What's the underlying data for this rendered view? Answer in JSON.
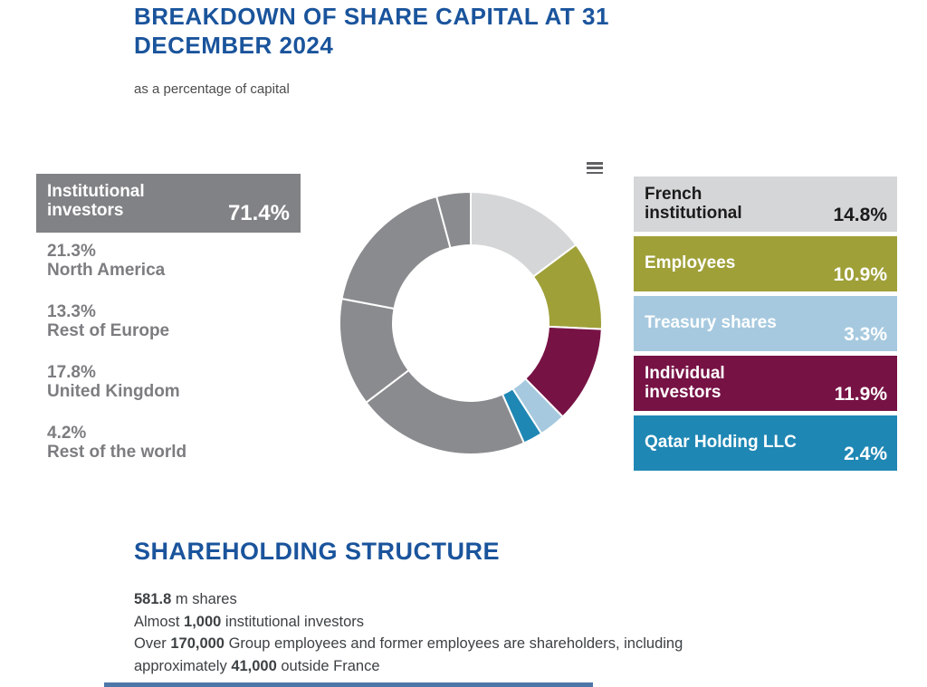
{
  "header": {
    "title": "BREAKDOWN OF SHARE CAPITAL AT 31 DECEMBER 2024",
    "subtitle": "as a percentage of capital"
  },
  "colors": {
    "heading_blue": "#1a549c",
    "institutional_gray": "#808285",
    "donut_gray": "#8a8b8e",
    "french_institutional": "#d5d6d7",
    "employees": "#9fa038",
    "treasury_shares": "#a6c9df",
    "individual_investors": "#771245",
    "qatar_holding": "#1f87b4",
    "body_text": "#3d4144",
    "bottom_bar_blue": "#4d77a8"
  },
  "left_legend": {
    "main": {
      "label": "Institutional investors",
      "value": "71.4%"
    },
    "items": [
      {
        "value": "21.3%",
        "label": "North America"
      },
      {
        "value": "13.3%",
        "label": "Rest of Europe"
      },
      {
        "value": "17.8%",
        "label": "United Kingdom"
      },
      {
        "value": "4.2%",
        "label": "Rest of the world"
      }
    ]
  },
  "right_legend": {
    "items": [
      {
        "label": "French institutional",
        "value": "14.8%",
        "color": "#d5d6d7",
        "text_color": "#1b1b1b"
      },
      {
        "label": "Employees",
        "value": "10.9%",
        "color": "#9fa038",
        "text_color": "#ffffff"
      },
      {
        "label": "Treasury shares",
        "value": "3.3%",
        "color": "#a6c9df",
        "text_color": "#ffffff"
      },
      {
        "label": "Individual investors",
        "value": "11.9%",
        "color": "#771245",
        "text_color": "#ffffff"
      },
      {
        "label": "Qatar Holding LLC",
        "value": "2.4%",
        "color": "#1f87b4",
        "text_color": "#ffffff"
      }
    ]
  },
  "chart_data": {
    "type": "pie",
    "donut": true,
    "title": "BREAKDOWN OF SHARE CAPITAL AT 31 DECEMBER 2024",
    "subtitle": "as a percentage of capital",
    "unit": "%",
    "start_angle_deg": 0,
    "direction": "clockwise",
    "slices": [
      {
        "name": "French institutional",
        "value": 14.8,
        "color": "#d5d6d7"
      },
      {
        "name": "Employees",
        "value": 10.9,
        "color": "#9fa038"
      },
      {
        "name": "Individual investors",
        "value": 11.9,
        "color": "#771245"
      },
      {
        "name": "Treasury shares",
        "value": 3.3,
        "color": "#a6c9df"
      },
      {
        "name": "Qatar Holding LLC",
        "value": 2.4,
        "color": "#1f87b4"
      },
      {
        "name": "North America",
        "value": 21.3,
        "color": "#8a8b8e",
        "group": "Institutional investors"
      },
      {
        "name": "Rest of Europe",
        "value": 13.3,
        "color": "#8a8b8e",
        "group": "Institutional investors"
      },
      {
        "name": "United Kingdom",
        "value": 17.8,
        "color": "#8a8b8e",
        "group": "Institutional investors"
      },
      {
        "name": "Rest of the world",
        "value": 4.2,
        "color": "#8a8b8e",
        "group": "Institutional investors"
      }
    ],
    "groups": {
      "Institutional investors": 71.4
    },
    "legend_position": "left-and-right",
    "menu_icon": "hamburger-icon"
  },
  "structure_section": {
    "title": "SHAREHOLDING STRUCTURE",
    "lines": [
      [
        {
          "t": "581.8",
          "b": true
        },
        {
          "t": " m shares",
          "b": false
        }
      ],
      [
        {
          "t": "Almost ",
          "b": false
        },
        {
          "t": "1,000",
          "b": true
        },
        {
          "t": " institutional investors",
          "b": false
        }
      ],
      [
        {
          "t": "Over ",
          "b": false
        },
        {
          "t": "170,000",
          "b": true
        },
        {
          "t": " Group employees and former employees are shareholders, including",
          "b": false
        }
      ],
      [
        {
          "t": "approximately ",
          "b": false
        },
        {
          "t": "41,000",
          "b": true
        },
        {
          "t": " outside France",
          "b": false
        }
      ]
    ]
  }
}
